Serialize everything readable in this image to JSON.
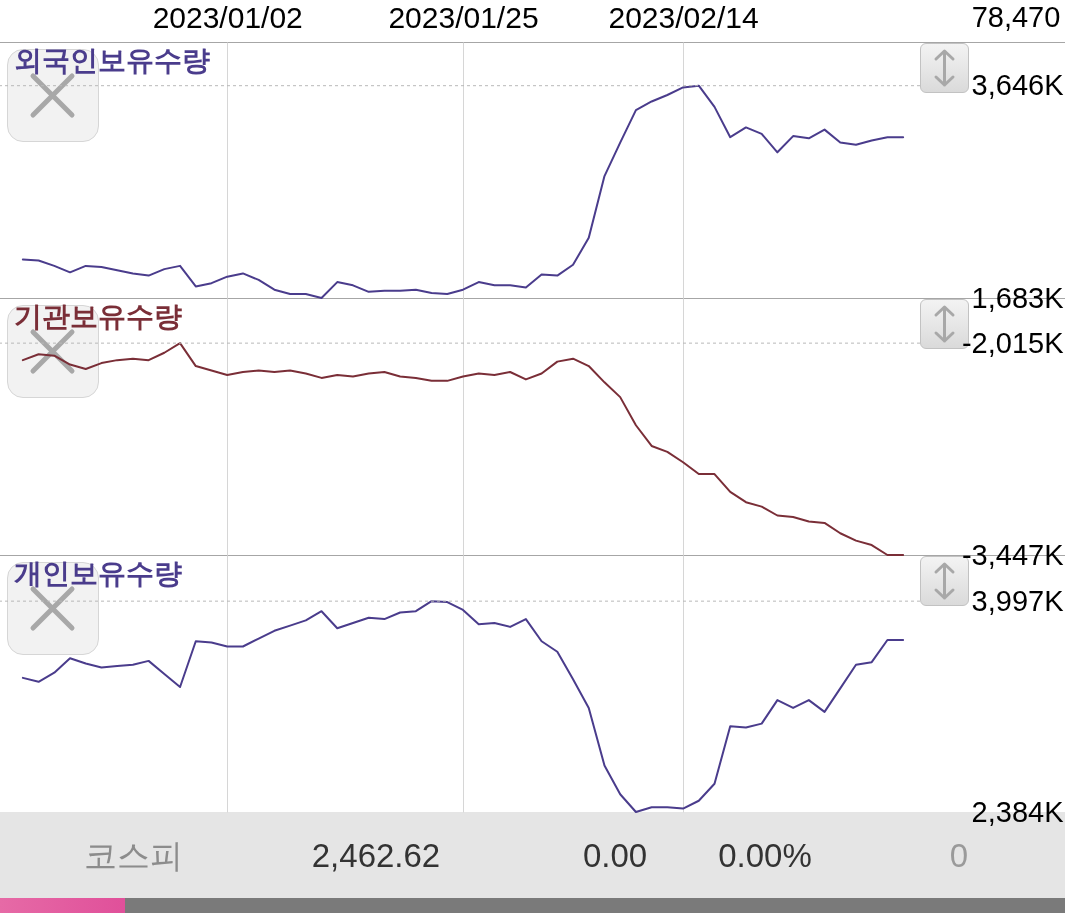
{
  "chart_data": [
    {
      "type": "other",
      "annotations": [
        "78,470"
      ]
    },
    {
      "type": "line",
      "title": "외국인보유수량",
      "categories": [
        null,
        null,
        null,
        null,
        null,
        null,
        null,
        null,
        null,
        null,
        null,
        null,
        null,
        "2023/01/02",
        null,
        null,
        null,
        null,
        null,
        null,
        null,
        null,
        null,
        null,
        null,
        null,
        null,
        null,
        "2023/01/25",
        null,
        null,
        null,
        null,
        null,
        null,
        null,
        null,
        null,
        null,
        null,
        null,
        null,
        "2023/02/14",
        null,
        null,
        null,
        null,
        null,
        null,
        null,
        null,
        null,
        null,
        null,
        null,
        null,
        null
      ],
      "series": [
        {
          "color": "#4a3c8c",
          "values": [
            2040,
            2030,
            1980,
            1920,
            1980,
            1970,
            1940,
            1910,
            1890,
            1950,
            1980,
            1790,
            1820,
            1880,
            1910,
            1850,
            1760,
            1720,
            1720,
            1683,
            1830,
            1800,
            1740,
            1750,
            1750,
            1760,
            1730,
            1720,
            1760,
            1830,
            1800,
            1800,
            1780,
            1900,
            1890,
            1990,
            2240,
            2810,
            3120,
            3420,
            3500,
            3560,
            3630,
            3646,
            3450,
            3170,
            3260,
            3200,
            3030,
            3180,
            3160,
            3240,
            3120,
            3100,
            3140,
            3170,
            3170
          ]
        }
      ],
      "ylim": [
        1683,
        4050
      ],
      "yticks": [
        {
          "value": 1683,
          "label": "1,683K"
        },
        {
          "value": 3646,
          "label": "3,646K"
        }
      ],
      "grid": "x",
      "ref_lines": [
        {
          "axis": "y",
          "value": 3646,
          "color": "#b8b8b8",
          "line_style": "dotted"
        }
      ]
    },
    {
      "type": "line",
      "title": "기관보유수량",
      "categories": [
        null,
        null,
        null,
        null,
        null,
        null,
        null,
        null,
        null,
        null,
        null,
        null,
        null,
        "2023/01/02",
        null,
        null,
        null,
        null,
        null,
        null,
        null,
        null,
        null,
        null,
        null,
        null,
        null,
        null,
        "2023/01/25",
        null,
        null,
        null,
        null,
        null,
        null,
        null,
        null,
        null,
        null,
        null,
        null,
        null,
        "2023/02/14",
        null,
        null,
        null,
        null,
        null,
        null,
        null,
        null,
        null,
        null,
        null,
        null,
        null,
        null
      ],
      "series": [
        {
          "color": "#7a2e37",
          "values": [
            -2130,
            -2090,
            -2100,
            -2160,
            -2190,
            -2150,
            -2130,
            -2120,
            -2130,
            -2080,
            -2015,
            -2170,
            -2200,
            -2230,
            -2210,
            -2200,
            -2210,
            -2200,
            -2220,
            -2250,
            -2230,
            -2240,
            -2220,
            -2210,
            -2240,
            -2250,
            -2270,
            -2270,
            -2240,
            -2220,
            -2230,
            -2210,
            -2260,
            -2220,
            -2140,
            -2120,
            -2170,
            -2280,
            -2380,
            -2570,
            -2710,
            -2750,
            -2820,
            -2900,
            -2900,
            -3020,
            -3090,
            -3120,
            -3180,
            -3190,
            -3220,
            -3230,
            -3300,
            -3350,
            -3380,
            -3447,
            -3447
          ]
        }
      ],
      "ylim": [
        -3447,
        -1710
      ],
      "yticks": [
        {
          "value": -3447,
          "label": "-3,447K"
        },
        {
          "value": -2015,
          "label": "-2,015K"
        }
      ],
      "grid": "x",
      "tick_labels": "y",
      "ref_lines": [
        {
          "axis": "y",
          "value": -2015,
          "color": "#b8b8b8",
          "line_style": "dotted"
        }
      ]
    },
    {
      "type": "line",
      "title": "개인보유수량",
      "categories": [
        null,
        null,
        null,
        null,
        null,
        null,
        null,
        null,
        null,
        null,
        null,
        null,
        null,
        "2023/01/02",
        null,
        null,
        null,
        null,
        null,
        null,
        null,
        null,
        null,
        null,
        null,
        null,
        null,
        null,
        "2023/01/25",
        null,
        null,
        null,
        null,
        null,
        null,
        null,
        null,
        null,
        null,
        null,
        null,
        null,
        "2023/02/14",
        null,
        null,
        null,
        null,
        null,
        null,
        null,
        null,
        null,
        null,
        null,
        null,
        null,
        null
      ],
      "series": [
        {
          "color": "#4a3c8c",
          "values": [
            3410,
            3380,
            3450,
            3560,
            3520,
            3490,
            3500,
            3510,
            3540,
            3440,
            3340,
            3690,
            3680,
            3650,
            3650,
            3710,
            3770,
            3810,
            3850,
            3920,
            3790,
            3830,
            3870,
            3860,
            3910,
            3920,
            3997,
            3990,
            3930,
            3820,
            3830,
            3800,
            3860,
            3690,
            3610,
            3400,
            3180,
            2740,
            2520,
            2384,
            2420,
            2420,
            2410,
            2470,
            2600,
            3040,
            3030,
            3060,
            3240,
            3180,
            3240,
            3150,
            3330,
            3510,
            3530,
            3700,
            3700
          ]
        }
      ],
      "ylim": [
        2384,
        4350
      ],
      "yticks": [
        {
          "value": 2384,
          "label": "2,384K"
        },
        {
          "value": 3997,
          "label": "3,997K"
        }
      ],
      "grid": "x",
      "tick_labels": "y",
      "ref_lines": [
        {
          "axis": "y",
          "value": 3997,
          "color": "#b8b8b8",
          "line_style": "dotted"
        }
      ]
    },
    {
      "type": "other",
      "annotations": [
        "코스피",
        "2,462.62",
        "0.00",
        "0.00%",
        "0"
      ]
    }
  ]
}
